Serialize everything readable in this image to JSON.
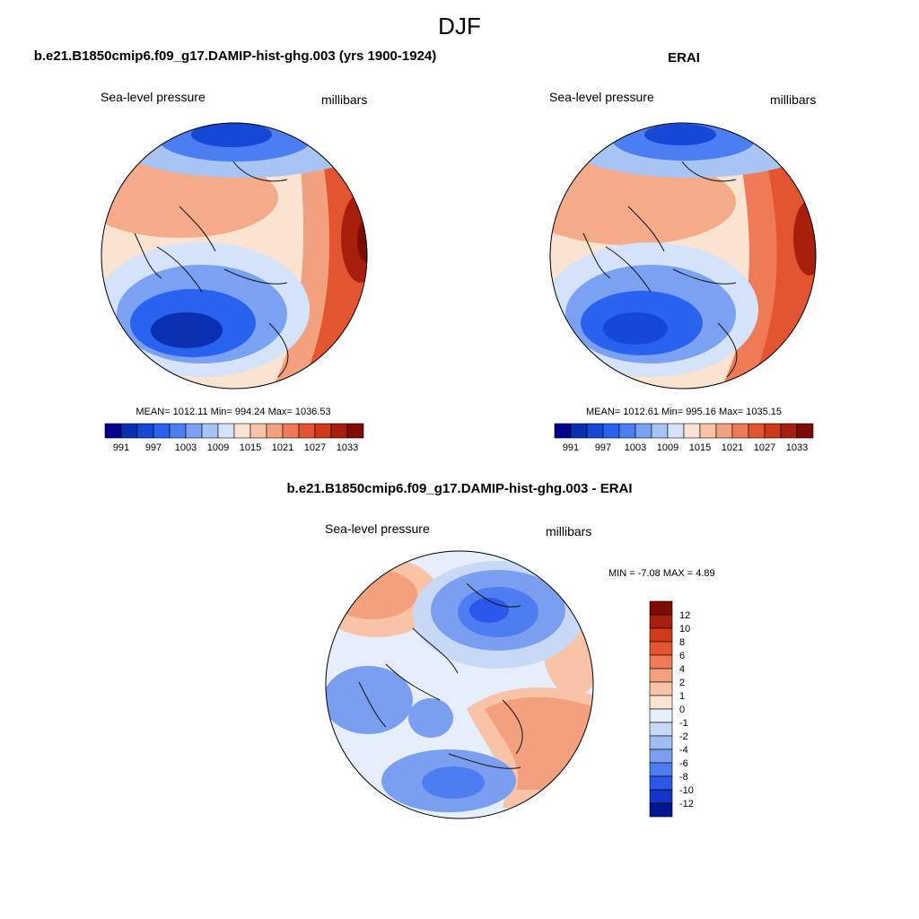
{
  "main_title": "DJF",
  "chart_data": [
    {
      "type": "heatmap",
      "projection": "north-polar-stereographic",
      "title": "b.e21.B1850cmip6.f09_g17.DAMIP-hist-ghg.003 (yrs 1900-1924)",
      "left_label": "Sea-level pressure",
      "right_label": "millibars",
      "stats": "MEAN= 1012.11  Min= 994.24  Max= 1036.53",
      "mean": 1012.11,
      "min": 994.24,
      "max": 1036.53,
      "colorbar_orientation": "horizontal",
      "colorbar_ticks": [
        "991",
        "997",
        "1003",
        "1009",
        "1015",
        "1021",
        "1027",
        "1033"
      ],
      "colorbar_colors": [
        "#00008c",
        "#0a2fb0",
        "#1548d4",
        "#2a62f0",
        "#4a7ef2",
        "#7aa1f2",
        "#a8c4f5",
        "#d4e3fa",
        "#fbe3d2",
        "#f8c3a6",
        "#f3a07e",
        "#ee7b55",
        "#e35430",
        "#d03a18",
        "#a81e0c",
        "#7c0c04"
      ]
    },
    {
      "type": "heatmap",
      "projection": "north-polar-stereographic",
      "title": "ERAI",
      "left_label": "Sea-level pressure",
      "right_label": "millibars",
      "stats": "MEAN= 1012.61  Min= 995.16  Max= 1035.15",
      "mean": 1012.61,
      "min": 995.16,
      "max": 1035.15,
      "colorbar_orientation": "horizontal",
      "colorbar_ticks": [
        "991",
        "997",
        "1003",
        "1009",
        "1015",
        "1021",
        "1027",
        "1033"
      ],
      "colorbar_colors": [
        "#00008c",
        "#0a2fb0",
        "#1548d4",
        "#2a62f0",
        "#4a7ef2",
        "#7aa1f2",
        "#a8c4f5",
        "#d4e3fa",
        "#fbe3d2",
        "#f8c3a6",
        "#f3a07e",
        "#ee7b55",
        "#e35430",
        "#d03a18",
        "#a81e0c",
        "#7c0c04"
      ]
    },
    {
      "type": "heatmap",
      "projection": "north-polar-stereographic",
      "title": "b.e21.B1850cmip6.f09_g17.DAMIP-hist-ghg.003 - ERAI",
      "left_label": "Sea-level pressure",
      "right_label": "millibars",
      "stats": "MIN =  -7.08 MAX =   4.89",
      "min": -7.08,
      "max": 4.89,
      "colorbar_orientation": "vertical",
      "colorbar_ticks": [
        "12",
        "10",
        "8",
        "6",
        "4",
        "2",
        "1",
        "0",
        "-1",
        "-2",
        "-4",
        "-6",
        "-8",
        "-10",
        "-12"
      ],
      "colorbar_colors": [
        "#7c0c04",
        "#a81e0c",
        "#d03a18",
        "#e35430",
        "#ee7b55",
        "#f3a07e",
        "#f8c3a6",
        "#fbe3d2",
        "#e6eefb",
        "#c8d9f7",
        "#a0bdf3",
        "#7a9ff0",
        "#4d7df0",
        "#2a58ea",
        "#1235c8",
        "#00168f"
      ]
    }
  ]
}
